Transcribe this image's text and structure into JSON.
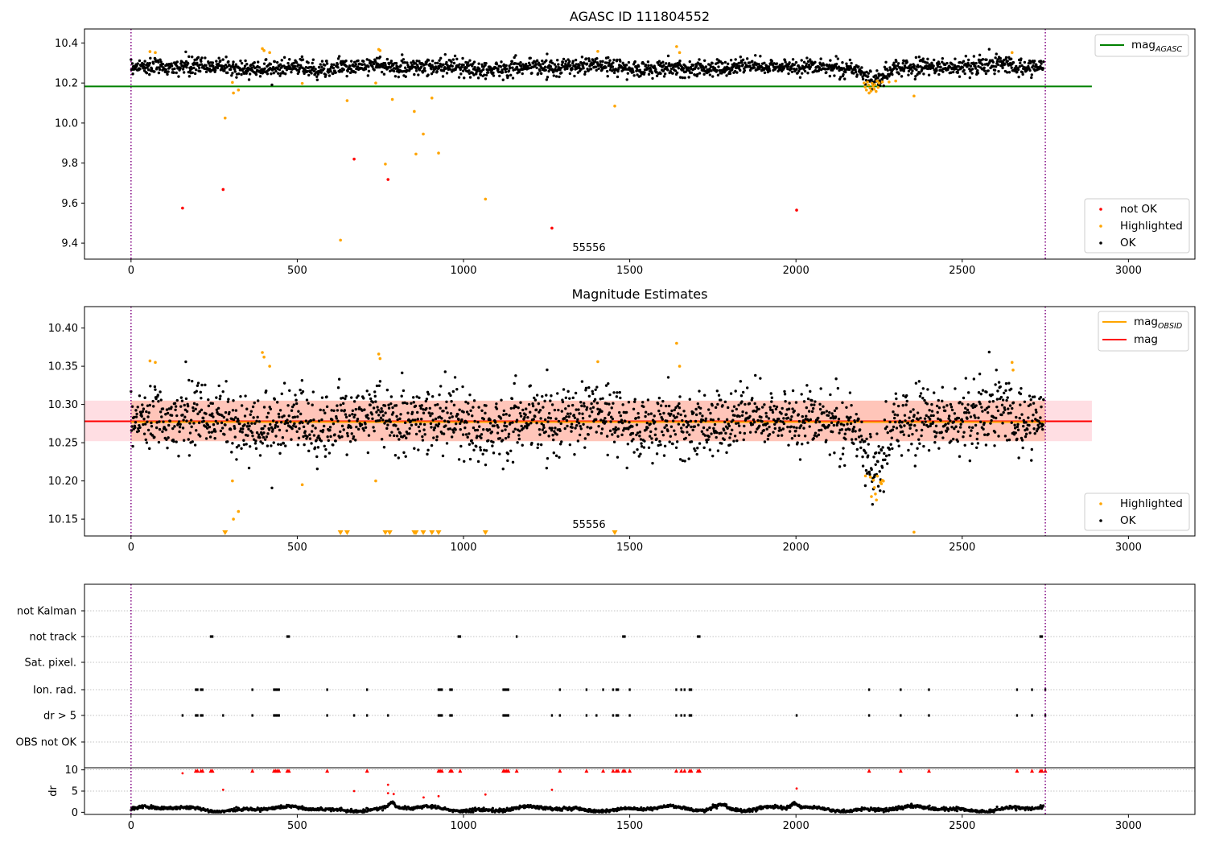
{
  "chart_data": [
    {
      "type": "scatter",
      "title": "AGASC ID 111804552",
      "annotation": "55556",
      "xlim": [
        -140,
        3200
      ],
      "ylim": [
        9.32,
        10.47
      ],
      "xticks": [
        0,
        500,
        1000,
        1500,
        2000,
        2500,
        3000
      ],
      "yticks": [
        9.4,
        9.6,
        9.8,
        10.0,
        10.2,
        10.4
      ],
      "ytick_labels": [
        "9.4",
        "9.6",
        "9.8",
        "10.0",
        "10.2",
        "10.4"
      ],
      "vlines": [
        0,
        2750
      ],
      "legend_top": {
        "label": "mag",
        "subscript": "AGASC",
        "color": "#008000"
      },
      "legend_bottom": [
        {
          "label": "not OK",
          "color": "#ff0000"
        },
        {
          "label": "Highlighted",
          "color": "#ffa500"
        },
        {
          "label": "OK",
          "color": "#000000"
        }
      ],
      "mag_agasc": {
        "value": 10.183,
        "x_range": [
          -140,
          2890
        ]
      },
      "series": [
        {
          "name": "not OK",
          "color": "#ff0000",
          "points": [
            [
              155,
              9.575
            ],
            [
              277,
              9.668
            ],
            [
              671,
              9.82
            ],
            [
              773,
              9.718
            ],
            [
              1266,
              9.475
            ],
            [
              2002,
              9.565
            ]
          ]
        },
        {
          "name": "Highlighted",
          "color": "#ffa500",
          "points": [
            [
              57,
              10.357
            ],
            [
              73,
              10.352
            ],
            [
              283,
              10.025
            ],
            [
              305,
              10.203
            ],
            [
              308,
              10.15
            ],
            [
              323,
              10.165
            ],
            [
              395,
              10.372
            ],
            [
              400,
              10.362
            ],
            [
              417,
              10.352
            ],
            [
              515,
              10.198
            ],
            [
              630,
              9.415
            ],
            [
              650,
              10.112
            ],
            [
              736,
              10.2
            ],
            [
              745,
              10.368
            ],
            [
              749,
              10.362
            ],
            [
              765,
              9.795
            ],
            [
              786,
              10.118
            ],
            [
              852,
              10.058
            ],
            [
              857,
              9.845
            ],
            [
              879,
              9.945
            ],
            [
              905,
              10.125
            ],
            [
              925,
              9.85
            ],
            [
              1066,
              9.62
            ],
            [
              1404,
              10.358
            ],
            [
              1455,
              10.085
            ],
            [
              1641,
              10.382
            ],
            [
              1650,
              10.352
            ],
            [
              2355,
              10.135
            ],
            [
              2650,
              10.352
            ],
            [
              2205,
              10.2
            ],
            [
              2208,
              10.18
            ],
            [
              2212,
              10.165
            ],
            [
              2215,
              10.205
            ],
            [
              2218,
              10.19
            ],
            [
              2220,
              10.15
            ],
            [
              2223,
              10.175
            ],
            [
              2226,
              10.16
            ],
            [
              2229,
              10.198
            ],
            [
              2232,
              10.185
            ],
            [
              2235,
              10.17
            ],
            [
              2238,
              10.192
            ],
            [
              2241,
              10.158
            ],
            [
              2244,
              10.21
            ],
            [
              2247,
              10.178
            ],
            [
              2250,
              10.2
            ],
            [
              2260,
              10.205
            ],
            [
              2280,
              10.205
            ],
            [
              2300,
              10.21
            ]
          ]
        }
      ]
    },
    {
      "type": "scatter",
      "title": "Magnitude Estimates",
      "annotation": "55556",
      "xlim": [
        -140,
        3200
      ],
      "ylim": [
        10.128,
        10.428
      ],
      "xticks": [
        0,
        500,
        1000,
        1500,
        2000,
        2500,
        3000
      ],
      "yticks": [
        10.15,
        10.2,
        10.25,
        10.3,
        10.35,
        10.4
      ],
      "ytick_labels": [
        "10.15",
        "10.20",
        "10.25",
        "10.30",
        "10.35",
        "10.40"
      ],
      "vlines": [
        0,
        2750
      ],
      "mag": {
        "value": 10.278,
        "color": "#ff0000"
      },
      "mag_obsid": {
        "value": 10.277,
        "color": "#ffa500"
      },
      "band_pink": [
        10.252,
        10.305
      ],
      "band_orange": [
        10.252,
        10.305
      ],
      "band_x_range": [
        -140,
        2890
      ],
      "legend_top": [
        {
          "label": "mag",
          "subscript": "OBSID",
          "color": "#ffa500"
        },
        {
          "label": "mag",
          "subscript": "",
          "color": "#ff0000"
        }
      ],
      "legend_bottom": [
        {
          "label": "Highlighted",
          "color": "#ffa500"
        },
        {
          "label": "OK",
          "color": "#000000"
        }
      ],
      "highlighted_points": [
        [
          57,
          10.357
        ],
        [
          73,
          10.355
        ],
        [
          305,
          10.2
        ],
        [
          308,
          10.15
        ],
        [
          323,
          10.16
        ],
        [
          395,
          10.368
        ],
        [
          400,
          10.362
        ],
        [
          417,
          10.35
        ],
        [
          515,
          10.195
        ],
        [
          736,
          10.2
        ],
        [
          745,
          10.366
        ],
        [
          749,
          10.36
        ],
        [
          1404,
          10.356
        ],
        [
          1641,
          10.38
        ],
        [
          1650,
          10.35
        ],
        [
          2355,
          10.133
        ],
        [
          2650,
          10.355
        ],
        [
          2653,
          10.345
        ]
      ],
      "below_range_markers": [
        283,
        630,
        650,
        765,
        778,
        852,
        857,
        879,
        905,
        925,
        1066,
        1455
      ]
    },
    {
      "type": "event-timeline",
      "xlim": [
        -140,
        3200
      ],
      "xticks": [
        0,
        500,
        1000,
        1500,
        2000,
        2500,
        3000
      ],
      "vlines": [
        0,
        2750
      ],
      "rows": [
        {
          "label": "not Kalman",
          "events": []
        },
        {
          "label": "not track",
          "events": [
            240,
            245,
            470,
            475,
            985,
            990,
            1160,
            1480,
            1485,
            1705,
            1710,
            2735,
            2740
          ]
        },
        {
          "label": "Sat. pixel.",
          "events": []
        },
        {
          "label": "Ion. rad.",
          "events": [
            195,
            200,
            210,
            215,
            365,
            430,
            435,
            440,
            445,
            590,
            710,
            925,
            930,
            935,
            960,
            965,
            1120,
            1125,
            1130,
            1135,
            1290,
            1370,
            1420,
            1450,
            1460,
            1465,
            1500,
            1640,
            1655,
            1665,
            1680,
            1685,
            2220,
            2315,
            2400,
            2665,
            2710,
            2750
          ]
        },
        {
          "label": "dr > 5",
          "events": [
            155,
            195,
            200,
            210,
            215,
            277,
            365,
            430,
            435,
            440,
            445,
            590,
            671,
            710,
            773,
            925,
            930,
            935,
            960,
            965,
            1120,
            1125,
            1130,
            1135,
            1266,
            1290,
            1370,
            1400,
            1450,
            1460,
            1465,
            1500,
            1640,
            1655,
            1665,
            1680,
            1685,
            2002,
            2220,
            2315,
            2400,
            2665,
            2710,
            2750
          ]
        },
        {
          "label": "OBS not OK",
          "events": []
        }
      ]
    },
    {
      "type": "scatter",
      "ylabel": "dr",
      "xlim": [
        -140,
        3200
      ],
      "ylim": [
        -0.5,
        10.5
      ],
      "xticks": [
        0,
        500,
        1000,
        1500,
        2000,
        2500,
        3000
      ],
      "xtick_labels": [
        "0",
        "500",
        "1000",
        "1500",
        "2000",
        "2500",
        "3000"
      ],
      "yticks": [
        0,
        5,
        10
      ],
      "ytick_labels": [
        "0",
        "5",
        "10"
      ],
      "vlines": [
        0,
        2750
      ],
      "clipped_markers_at_10": [
        195,
        200,
        210,
        215,
        240,
        245,
        365,
        430,
        435,
        440,
        445,
        470,
        475,
        590,
        710,
        925,
        930,
        935,
        960,
        965,
        990,
        1120,
        1125,
        1130,
        1135,
        1160,
        1290,
        1370,
        1420,
        1450,
        1460,
        1465,
        1480,
        1485,
        1500,
        1640,
        1655,
        1665,
        1680,
        1685,
        1705,
        1710,
        2220,
        2315,
        2400,
        2665,
        2710,
        2735,
        2740,
        2750
      ],
      "outlier_points": [
        [
          155,
          9.2
        ],
        [
          277,
          5.3
        ],
        [
          671,
          5.0
        ],
        [
          773,
          4.5
        ],
        [
          773,
          6.5
        ],
        [
          790,
          4.3
        ],
        [
          880,
          3.5
        ],
        [
          925,
          3.8
        ],
        [
          1066,
          4.2
        ],
        [
          1266,
          5.3
        ],
        [
          2002,
          5.6
        ]
      ]
    }
  ]
}
